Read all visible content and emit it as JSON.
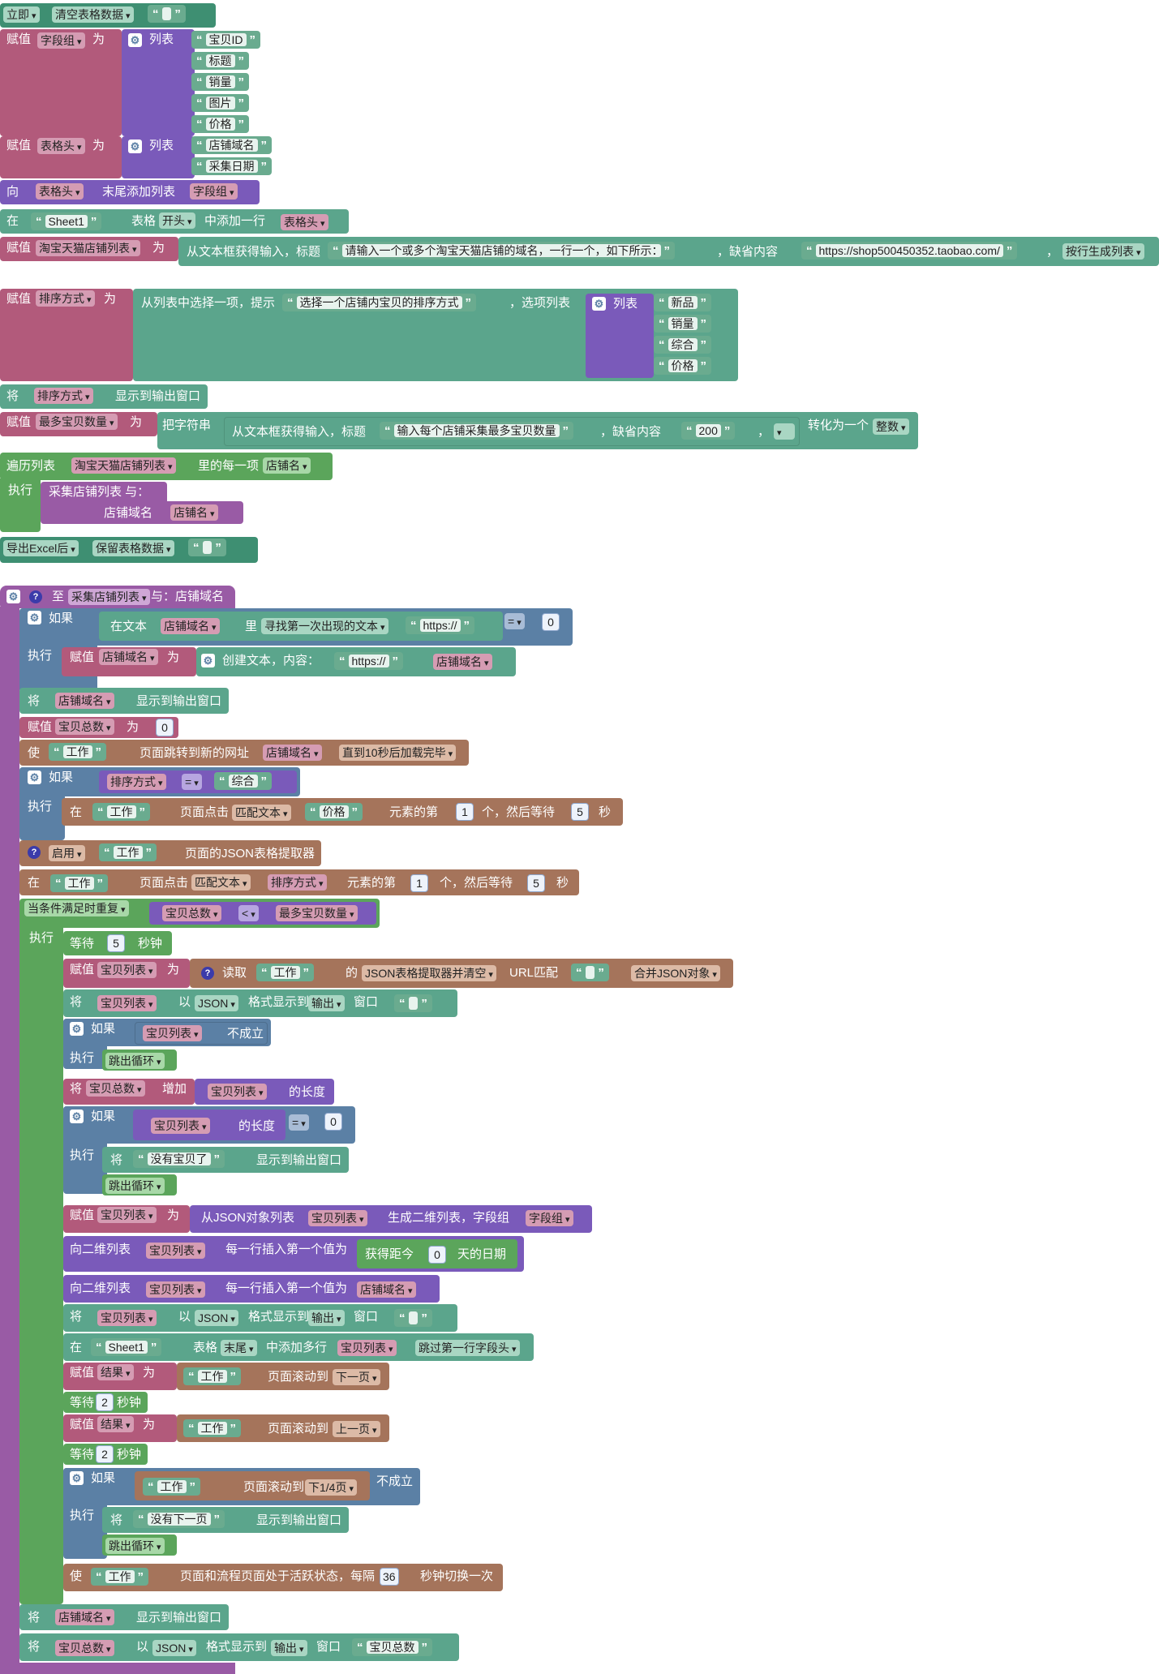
{
  "blocks": {
    "b1": {
      "a": "立即",
      "b": "清空表格数据",
      "c": " "
    },
    "b2": {
      "a": "赋值",
      "var": "字段组",
      "b": "为",
      "list": "列表",
      "items": [
        "宝贝ID",
        "标题",
        "销量",
        "图片",
        "价格"
      ]
    },
    "b3": {
      "a": "赋值",
      "var": "表格头",
      "b": "为",
      "list": "列表",
      "items": [
        "店铺域名",
        "采集日期"
      ]
    },
    "b4": {
      "a": "向",
      "var": "表格头",
      "b": "末尾添加列表",
      "var2": "字段组"
    },
    "b5": {
      "a": "在",
      "sheet": "Sheet1",
      "b": "表格",
      "pos": "开头",
      "c": "中添加一行",
      "var": "表格头"
    },
    "b6": {
      "a": "赋值",
      "var": "淘宝天猫店铺列表",
      "b": "为",
      "c": "从文本框获得输入，标题",
      "prompt": "请输入一个或多个淘宝天猫店铺的域名，一行一个，如下所示：",
      "d": "，缺省内容",
      "default": "https://shop500450352.taobao.com/",
      "e": "，",
      "mode": "按行生成列表"
    },
    "b7": {
      "a": "赋值",
      "var": "排序方式",
      "b": "为",
      "c": "从列表中选择一项，提示",
      "prompt": "选择一个店铺内宝贝的排序方式",
      "d": "，选项列表",
      "list": "列表",
      "items": [
        "新品",
        "销量",
        "综合",
        "价格"
      ]
    },
    "b8": {
      "a": "将",
      "var": "排序方式",
      "b": "显示到输出窗口"
    },
    "b9": {
      "a": "赋值",
      "var": "最多宝贝数量",
      "b": "为",
      "c": "把字符串",
      "d": "从文本框获得输入，标题",
      "prompt": "输入每个店铺采集最多宝贝数量",
      "e": "，缺省内容",
      "default": "200",
      "f": "，",
      "g": "转化为一个",
      "type": "整数"
    },
    "b10": {
      "a": "遍历列表",
      "var": "淘宝天猫店铺列表",
      "b": "里的每一项",
      "item": "店铺名",
      "exec": "执行",
      "call": "采集店铺列表  与：",
      "param": "店铺域名",
      "arg": "店铺名"
    },
    "b11": {
      "a": "导出Excel后",
      "b": "保留表格数据",
      "c": " "
    },
    "f": {
      "header": {
        "a": "至",
        "name": "采集店铺列表",
        "b": "与：店铺域名"
      },
      "r1": {
        "if": "如果",
        "a": "在文本",
        "var": "店铺域名",
        "b": "里",
        "op": "寻找第一次出现的文本",
        "str": "https://",
        "cmp": "=",
        "num": "0"
      },
      "r2": {
        "exec": "执行",
        "a": "赋值",
        "var": "店铺域名",
        "b": "为",
        "c": "创建文本，内容：",
        "str": "https://",
        "var2": "店铺域名"
      },
      "r3": {
        "a": "将",
        "var": "店铺域名",
        "b": "显示到输出窗口"
      },
      "r4": {
        "a": "赋值",
        "var": "宝贝总数",
        "b": "为",
        "num": "0"
      },
      "r5": {
        "a": "使",
        "str": "工作",
        "b": "页面跳转到新的网址",
        "var": "店铺域名",
        "mode": "直到10秒后加载完毕"
      },
      "r6": {
        "if": "如果",
        "var": "排序方式",
        "cmp": "=",
        "str": "综合"
      },
      "r7": {
        "exec": "执行",
        "a": "在",
        "str": "工作",
        "b": "页面点击",
        "mode": "匹配文本",
        "str2": "价格",
        "c": "元素的第",
        "n1": "1",
        "d": "个，然后等待",
        "n2": "5",
        "e": "秒"
      },
      "r8": {
        "mode": "启用",
        "str": "工作",
        "b": "页面的JSON表格提取器"
      },
      "r9": {
        "a": "在",
        "str": "工作",
        "b": "页面点击",
        "mode": "匹配文本",
        "var": "排序方式",
        "c": "元素的第",
        "n1": "1",
        "d": "个，然后等待",
        "n2": "5",
        "e": "秒"
      },
      "r10": {
        "mode": "当条件满足时重复",
        "var": "宝贝总数",
        "cmp": "<",
        "var2": "最多宝贝数量",
        "exec": "执行"
      },
      "w1": {
        "a": "等待",
        "n": "5",
        "b": "秒钟"
      },
      "w2": {
        "a": "赋值",
        "var": "宝贝列表",
        "b": "为",
        "c": "读取",
        "str": "工作",
        "d": "的",
        "mode": "JSON表格提取器并清空",
        "e": "URL匹配",
        "str2": " ",
        "mode2": "合并JSON对象"
      },
      "w3": {
        "a": "将",
        "var": "宝贝列表",
        "b": "以",
        "fmt": "JSON",
        "c": "格式显示到",
        "win": "输出",
        "d": "窗口",
        "str": " "
      },
      "w4": {
        "if": "如果",
        "var": "宝贝列表",
        "b": "不成立",
        "exec": "执行",
        "brk": "跳出循环"
      },
      "w5": {
        "a": "将",
        "var": "宝贝总数",
        "b": "增加",
        "var2": "宝贝列表",
        "c": "的长度"
      },
      "w6": {
        "if": "如果",
        "var": "宝贝列表",
        "b": "的长度",
        "cmp": "=",
        "num": "0",
        "exec": "执行",
        "a": "将",
        "str": "没有宝贝了",
        "c": "显示到输出窗口",
        "brk": "跳出循环"
      },
      "w7": {
        "a": "赋值",
        "var": "宝贝列表",
        "b": "为",
        "c": "从JSON对象列表",
        "var2": "宝贝列表",
        "d": "生成二维列表，字段组",
        "var3": "字段组"
      },
      "w8": {
        "a": "向二维列表",
        "var": "宝贝列表",
        "b": "每一行插入第一个值为",
        "c": "获得距今",
        "num": "0",
        "d": "天的日期"
      },
      "w9": {
        "a": "向二维列表",
        "var": "宝贝列表",
        "b": "每一行插入第一个值为",
        "var2": "店铺域名"
      },
      "w10": {
        "a": "将",
        "var": "宝贝列表",
        "b": "以",
        "fmt": "JSON",
        "c": "格式显示到",
        "win": "输出",
        "d": "窗口",
        "str": " "
      },
      "w11": {
        "a": "在",
        "sheet": "Sheet1",
        "b": "表格",
        "pos": "末尾",
        "c": "中添加多行",
        "var": "宝贝列表",
        "mode": "跳过第一行字段头"
      },
      "w12": {
        "a": "赋值",
        "var": "结果",
        "b": "为",
        "str": "工作",
        "c": "页面滚动到",
        "mode": "下一页"
      },
      "w13": {
        "a": "等待",
        "n": "2",
        "b": "秒钟"
      },
      "w14": {
        "a": "赋值",
        "var": "结果",
        "b": "为",
        "str": "工作",
        "c": "页面滚动到",
        "mode": "上一页"
      },
      "w15": {
        "a": "等待",
        "n": "2",
        "b": "秒钟"
      },
      "w16": {
        "if": "如果",
        "str": "工作",
        "c": "页面滚动到",
        "mode": "下1/4页",
        "b": "不成立",
        "exec": "执行",
        "a": "将",
        "str2": "没有下一页",
        "d": "显示到输出窗口",
        "brk": "跳出循环"
      },
      "w17": {
        "a": "使",
        "str": "工作",
        "b": "页面和流程页面处于活跃状态，每隔",
        "n": "36",
        "c": "秒钟切换一次"
      },
      "r11": {
        "a": "将",
        "var": "店铺域名",
        "b": "显示到输出窗口"
      },
      "r12": {
        "a": "将",
        "var": "宝贝总数",
        "b": "以",
        "fmt": "JSON",
        "c": "格式显示到",
        "win": "输出",
        "d": "窗口",
        "str": "宝贝总数"
      }
    }
  }
}
